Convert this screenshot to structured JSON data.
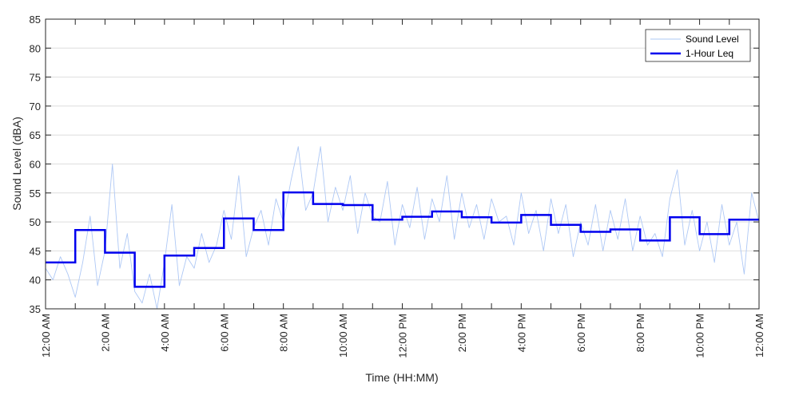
{
  "chart_data": {
    "type": "line",
    "title": "",
    "xlabel": "Time (HH:MM)",
    "ylabel": "Sound Level (dBA)",
    "xlim_hours": [
      0,
      24
    ],
    "ylim": [
      35,
      85
    ],
    "yticks": [
      35,
      40,
      45,
      50,
      55,
      60,
      65,
      70,
      75,
      80,
      85
    ],
    "xtick_hours": [
      0,
      2,
      4,
      6,
      8,
      10,
      12,
      14,
      16,
      18,
      20,
      22,
      24
    ],
    "xtick_labels": [
      "12:00 AM",
      "2:00 AM",
      "4:00 AM",
      "6:00 AM",
      "8:00 AM",
      "10:00 AM",
      "12:00 PM",
      "2:00 PM",
      "4:00 PM",
      "6:00 PM",
      "8:00 PM",
      "10:00 PM",
      "12:00 AM"
    ],
    "grid": "horizontal",
    "legend": {
      "placement": "top-right"
    },
    "series": [
      {
        "name": "Sound Level",
        "style": "thin-line",
        "color": "#aec8f5",
        "x_hours": [
          0,
          0.25,
          0.5,
          0.75,
          1,
          1.25,
          1.5,
          1.75,
          2,
          2.25,
          2.5,
          2.75,
          3,
          3.25,
          3.5,
          3.75,
          4,
          4.25,
          4.5,
          4.75,
          5,
          5.25,
          5.5,
          5.75,
          6,
          6.25,
          6.5,
          6.75,
          7,
          7.25,
          7.5,
          7.75,
          8,
          8.25,
          8.5,
          8.75,
          9,
          9.25,
          9.5,
          9.75,
          10,
          10.25,
          10.5,
          10.75,
          11,
          11.25,
          11.5,
          11.75,
          12,
          12.25,
          12.5,
          12.75,
          13,
          13.25,
          13.5,
          13.75,
          14,
          14.25,
          14.5,
          14.75,
          15,
          15.25,
          15.5,
          15.75,
          16,
          16.25,
          16.5,
          16.75,
          17,
          17.25,
          17.5,
          17.75,
          18,
          18.25,
          18.5,
          18.75,
          19,
          19.25,
          19.5,
          19.75,
          20,
          20.25,
          20.5,
          20.75,
          21,
          21.25,
          21.5,
          21.75,
          22,
          22.25,
          22.5,
          22.75,
          23,
          23.25,
          23.5,
          23.75,
          24
        ],
        "values": [
          42,
          40,
          44,
          41,
          37,
          43,
          51,
          39,
          45,
          60,
          42,
          48,
          38,
          36,
          41,
          35,
          43,
          53,
          39,
          44,
          42,
          48,
          43,
          46,
          52,
          47,
          58,
          44,
          49,
          52,
          46,
          54,
          50,
          57,
          63,
          52,
          55,
          63,
          50,
          56,
          52,
          58,
          48,
          55,
          51,
          50,
          57,
          46,
          53,
          49,
          56,
          47,
          54,
          50,
          58,
          47,
          55,
          49,
          53,
          47,
          54,
          50,
          51,
          46,
          55,
          48,
          52,
          45,
          54,
          48,
          53,
          44,
          50,
          46,
          53,
          45,
          52,
          47,
          54,
          45,
          51,
          46,
          48,
          44,
          54,
          59,
          46,
          52,
          45,
          50,
          43,
          53,
          46,
          50,
          41,
          55,
          50
        ]
      },
      {
        "name": "1-Hour Leq",
        "style": "step",
        "color": "#0000ee",
        "x_hours": [
          0,
          1,
          2,
          3,
          4,
          5,
          6,
          7,
          8,
          9,
          10,
          11,
          12,
          13,
          14,
          15,
          16,
          17,
          18,
          19,
          20,
          21,
          22,
          23
        ],
        "values": [
          43,
          48.6,
          44.7,
          38.8,
          44.2,
          45.5,
          50.6,
          48.6,
          55.1,
          53.1,
          52.9,
          50.4,
          50.9,
          51.8,
          50.8,
          49.9,
          51.2,
          49.5,
          48.3,
          48.7,
          46.8,
          50.8,
          47.9,
          50.4
        ]
      }
    ]
  }
}
